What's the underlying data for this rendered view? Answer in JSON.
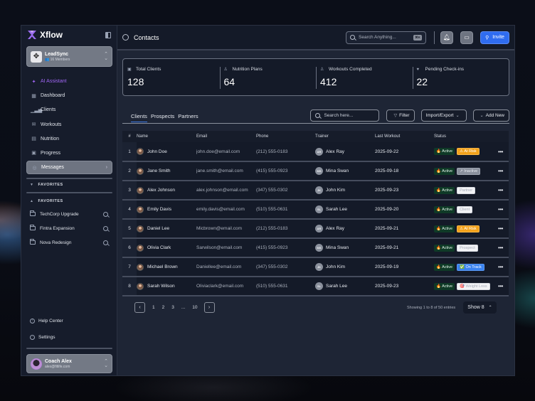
{
  "app": {
    "brand": "Xflow"
  },
  "workspace": {
    "name": "LeadSync",
    "members": "16 Members"
  },
  "sidebar": {
    "items": [
      {
        "label": "AI Assistant",
        "icon": "sparkle-icon"
      },
      {
        "label": "Dashboard",
        "icon": "grid-icon"
      },
      {
        "label": "Clients",
        "icon": "bar-chart-icon"
      },
      {
        "label": "Workouts",
        "icon": "mail-icon"
      },
      {
        "label": "Nutrition",
        "icon": "calendar-icon"
      },
      {
        "label": "Progress",
        "icon": "clipboard-icon"
      },
      {
        "label": "Messages",
        "icon": "user-circle-icon"
      }
    ],
    "favorites_collapsed_label": "FAVORITES",
    "favorites_label": "FAVORITES",
    "favorites": [
      {
        "label": "TechCorp Upgrade"
      },
      {
        "label": "Fintra Expansion"
      },
      {
        "label": "Nova Redesign"
      }
    ],
    "help_label": "Help Center",
    "settings_label": "Settings"
  },
  "user": {
    "name": "Coach Alex",
    "email": "alex@fitlife.com"
  },
  "header": {
    "title": "Contacts",
    "search_placeholder": "Search Anything...",
    "search_shortcut": "⌘K",
    "invite_label": "Invite"
  },
  "stats": [
    {
      "label": "Total Clients",
      "value": "128"
    },
    {
      "label": "Nutrition Plans",
      "value": "64"
    },
    {
      "label": "Workouts Completed",
      "value": "412"
    },
    {
      "label": "Pending Check-ins",
      "value": "22"
    }
  ],
  "tabs": [
    {
      "label": "Clients",
      "active": true
    },
    {
      "label": "Prospects"
    },
    {
      "label": "Partners"
    }
  ],
  "toolbar": {
    "search_placeholder": "Search here...",
    "filter_label": "Filter",
    "import_export_label": "Import/Export",
    "add_new_label": "Add New"
  },
  "table": {
    "columns": [
      "#",
      "Name",
      "Email",
      "Phone",
      "Trainer",
      "Last Workout",
      "Status"
    ],
    "rows": [
      {
        "num": "1",
        "name": "John Doe",
        "email": "john.doe@email.com",
        "phone": "(212) 555-0183",
        "trainer_initials": "AR",
        "trainer": "Alex Ray",
        "last_workout": "2025-09-22",
        "status": "🔥 Active",
        "tag": "⚠ At Risk",
        "tag_style": "warn"
      },
      {
        "num": "2",
        "name": "Jane Smith",
        "email": "jane.smith@email.com",
        "phone": "(415) 555-0923",
        "trainer_initials": "MS",
        "trainer": "Mina Swan",
        "last_workout": "2025-09-18",
        "status": "🔥 Active",
        "tag": "↗ Inactive",
        "tag_style": "inactive"
      },
      {
        "num": "3",
        "name": "Alex Johnson",
        "email": "alex.johnson@email.com",
        "phone": "(347) 555-0302",
        "trainer_initials": "JK",
        "trainer": "John Kim",
        "last_workout": "2025-09-23",
        "status": "🔥 Active",
        "tag": "Partner",
        "tag_style": "light"
      },
      {
        "num": "4",
        "name": "Emily Davis",
        "email": "emily.davis@email.com",
        "phone": "(510) 555-0631",
        "trainer_initials": "SL",
        "trainer": "Sarah Lee",
        "last_workout": "2025-09-20",
        "status": "🔥 Active",
        "tag": "Client",
        "tag_style": "light"
      },
      {
        "num": "5",
        "name": "Daniel Lee",
        "email": "Micbrown@email.com",
        "phone": "(212) 555-0183",
        "trainer_initials": "AR",
        "trainer": "Alex Ray",
        "last_workout": "2025-09-21",
        "status": "🔥 Active",
        "tag": "⚠ At Risk",
        "tag_style": "warn"
      },
      {
        "num": "6",
        "name": "Olivia Clark",
        "email": "Sarwilson@email.com",
        "phone": "(415) 555-0923",
        "trainer_initials": "MS",
        "trainer": "Mina Swan",
        "last_workout": "2025-09-21",
        "status": "🔥 Active",
        "tag": "Prospect",
        "tag_style": "light"
      },
      {
        "num": "7",
        "name": "Michael Brown",
        "email": "Daniellee@email.com",
        "phone": "(347) 555-0302",
        "trainer_initials": "JK",
        "trainer": "John Kim",
        "last_workout": "2025-09-19",
        "status": "🔥 Active",
        "tag": "✅ On Track",
        "tag_style": "blue"
      },
      {
        "num": "8",
        "name": "Sarah Wilson",
        "email": "Oliviaclark@email.com",
        "phone": "(510) 555-0631",
        "trainer_initials": "SL",
        "trainer": "Sarah Lee",
        "last_workout": "2025-09-23",
        "status": "🔥 Active",
        "tag": "🎯 Weight Loss",
        "tag_style": "light"
      }
    ]
  },
  "pagination": {
    "pages": [
      "1",
      "2",
      "3",
      "...",
      "10"
    ],
    "entries_text": "Showing 1 to 8 of 50 entries",
    "show_label": "Show 8"
  }
}
